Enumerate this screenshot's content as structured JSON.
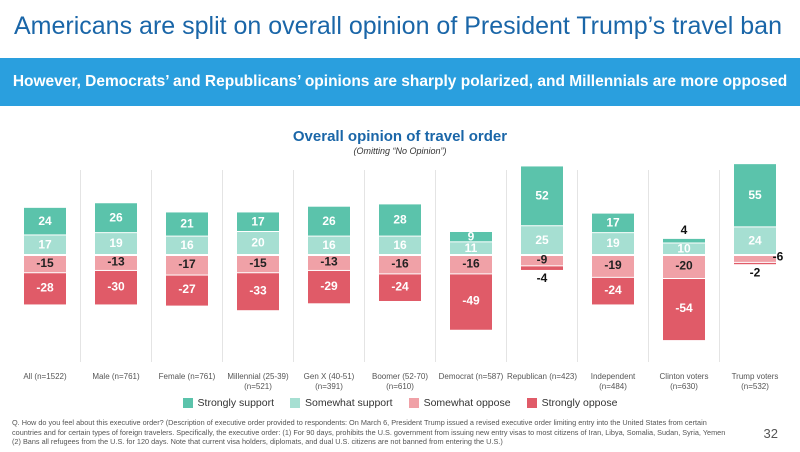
{
  "header": {
    "title": "Americans are split on overall opinion of President Trump’s travel ban",
    "banner": "However, Democrats’ and Republicans’ opinions are sharply polarized, and Millennials are more opposed"
  },
  "chart_data": {
    "type": "diverging_bar",
    "title": "Overall opinion of travel order",
    "subtitle": "(Omitting “No Opinion”)",
    "categories": [
      "All (n=1522)",
      "Male (n=761)",
      "Female (n=761)",
      "Millennial (25-39)\n(n=521)",
      "Gen X (40-51)\n(n=391)",
      "Boomer (52-70)\n(n=610)",
      "Democrat (n=587)",
      "Republican (n=423)",
      "Independent\n(n=484)",
      "Clinton voters\n(n=630)",
      "Trump voters\n(n=532)"
    ],
    "series": [
      {
        "name": "Strongly support",
        "color": "#5bc3ab",
        "values": [
          24,
          26,
          21,
          17,
          26,
          28,
          9,
          52,
          17,
          4,
          55
        ]
      },
      {
        "name": "Somewhat support",
        "color": "#a6dfd2",
        "values": [
          17,
          19,
          16,
          20,
          16,
          16,
          11,
          25,
          19,
          10,
          24
        ]
      },
      {
        "name": "Somewhat oppose",
        "color": "#f0a1a7",
        "values": [
          -15,
          -13,
          -17,
          -15,
          -13,
          -16,
          -16,
          -9,
          -19,
          -20,
          -6
        ]
      },
      {
        "name": "Strongly oppose",
        "color": "#e05b68",
        "values": [
          -28,
          -30,
          -27,
          -33,
          -29,
          -24,
          -49,
          -4,
          -24,
          -54,
          -2
        ]
      }
    ]
  },
  "footnote": "Q. How do you feel about this executive order? (Description of executive order provided to respondents: On March 6, President Trump issued a revised executive order limiting entry into the United States from certain countries and for certain types of foreign travelers. Specifically, the executive order: (1) For 90 days, prohibits the U.S. government from issuing new entry visas to most citizens of Iran, Libya, Somalia, Sudan, Syria, Yemen (2) Bans all refugees from the U.S. for 120 days. Note that current visa holders, diplomats, and dual U.S. citizens are not banned from entering the U.S.)",
  "page_number": "32"
}
